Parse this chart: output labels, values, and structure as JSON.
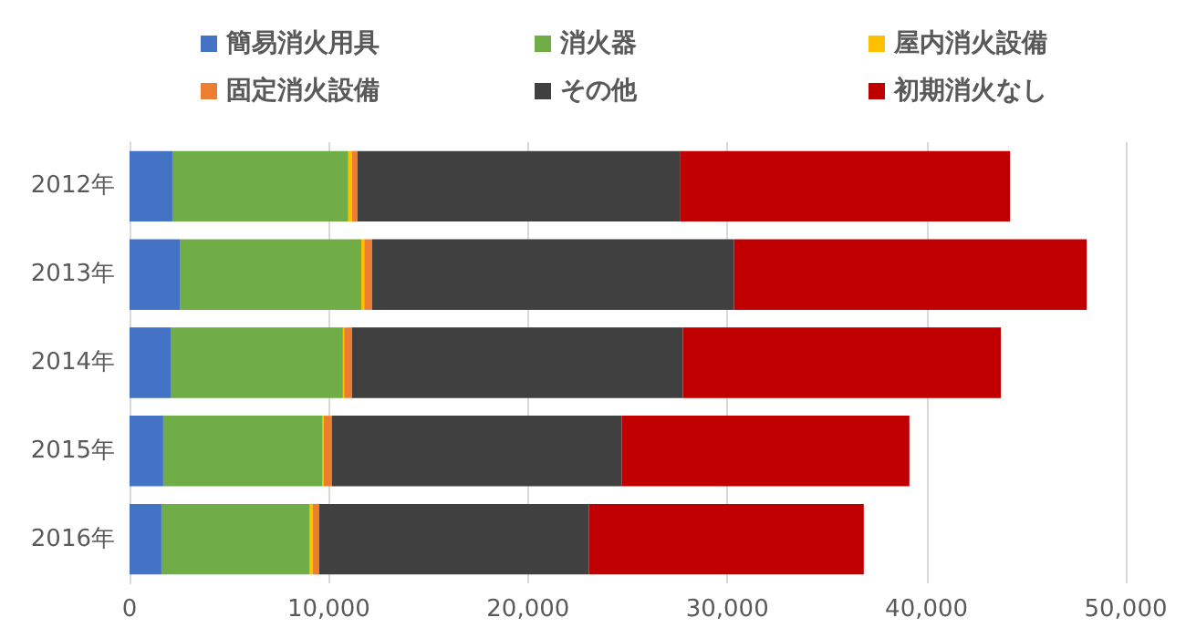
{
  "chart_data": {
    "type": "bar",
    "orientation": "horizontal",
    "stacked": true,
    "categories": [
      "2012年",
      "2013年",
      "2014年",
      "2015年",
      "2016年"
    ],
    "series": [
      {
        "name": "簡易消火用具",
        "color": "#4472c4",
        "values": [
          2150,
          2520,
          2060,
          1690,
          1600
        ]
      },
      {
        "name": "消火器",
        "color": "#70ad47",
        "values": [
          8830,
          9110,
          8650,
          8000,
          7450
        ]
      },
      {
        "name": "屋内消火設備",
        "color": "#ffc000",
        "values": [
          180,
          150,
          60,
          60,
          150
        ]
      },
      {
        "name": "固定消火設備",
        "color": "#ed7d31",
        "values": [
          280,
          400,
          400,
          400,
          310
        ]
      },
      {
        "name": "その他",
        "color": "#404040",
        "values": [
          16210,
          18160,
          16600,
          14560,
          13550
        ]
      },
      {
        "name": "初期消火なし",
        "color": "#c00000",
        "values": [
          16540,
          17700,
          15960,
          14430,
          13790
        ]
      }
    ],
    "xlim": [
      0,
      50000
    ],
    "xticks": [
      {
        "value": 0,
        "label": "0"
      },
      {
        "value": 10000,
        "label": "10,000"
      },
      {
        "value": 20000,
        "label": "20,000"
      },
      {
        "value": 30000,
        "label": "30,000"
      },
      {
        "value": 40000,
        "label": "40,000"
      },
      {
        "value": 50000,
        "label": "50,000"
      }
    ],
    "grid": "x",
    "legend": "top"
  }
}
